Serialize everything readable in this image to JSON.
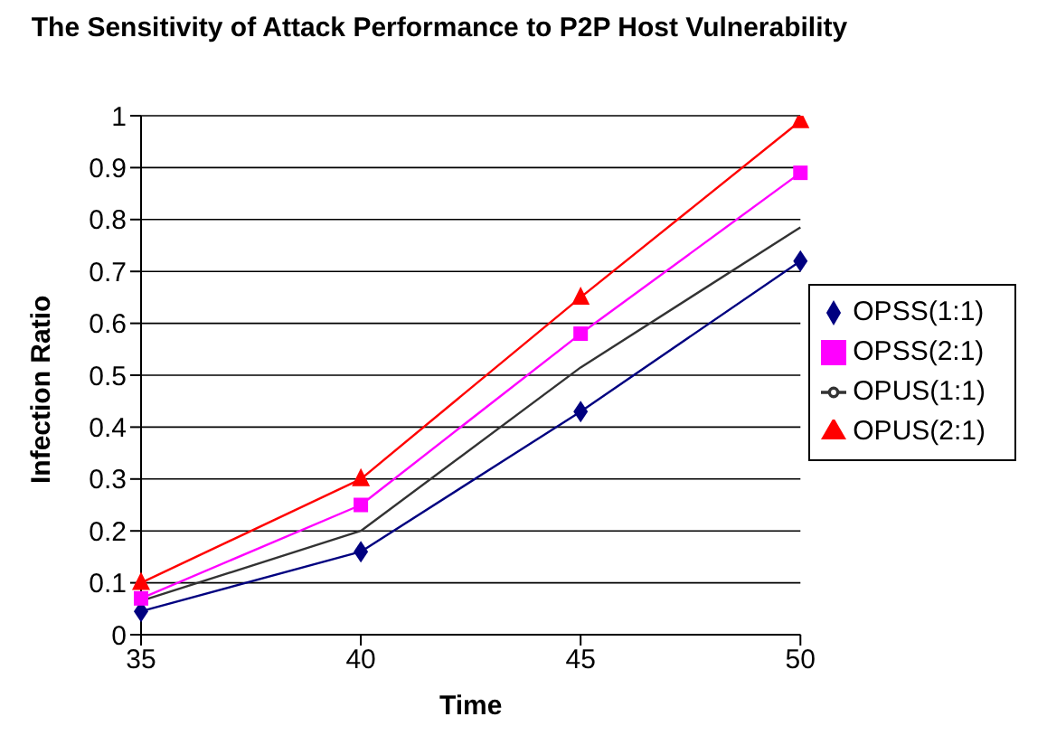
{
  "chart_data": {
    "type": "line",
    "title": "The Sensitivity of Attack Performance to P2P Host Vulnerability",
    "xlabel": "Time",
    "ylabel": "Infection Ratio",
    "categories": [
      "35",
      "40",
      "45",
      "50"
    ],
    "series": [
      {
        "name": "OPSS(1:1)",
        "color": "#000080",
        "marker": "diamond",
        "values": [
          0.045,
          0.16,
          0.43,
          0.72
        ]
      },
      {
        "name": "OPSS(2:1)",
        "color": "#ff00ff",
        "marker": "square",
        "values": [
          0.07,
          0.25,
          0.58,
          0.89
        ]
      },
      {
        "name": "OPUS(1:1)",
        "color": "#333333",
        "marker": "none",
        "values": [
          0.065,
          0.2,
          0.515,
          0.785
        ]
      },
      {
        "name": "OPUS(2:1)",
        "color": "#ff0000",
        "marker": "triangle",
        "values": [
          0.1,
          0.3,
          0.65,
          0.99
        ]
      }
    ],
    "ylim": [
      0,
      1
    ],
    "yticks": [
      0,
      0.1,
      0.2,
      0.3,
      0.4,
      0.5,
      0.6,
      0.7,
      0.8,
      0.9,
      1
    ],
    "grid": "y",
    "legend": "right",
    "line_style": "solid"
  }
}
